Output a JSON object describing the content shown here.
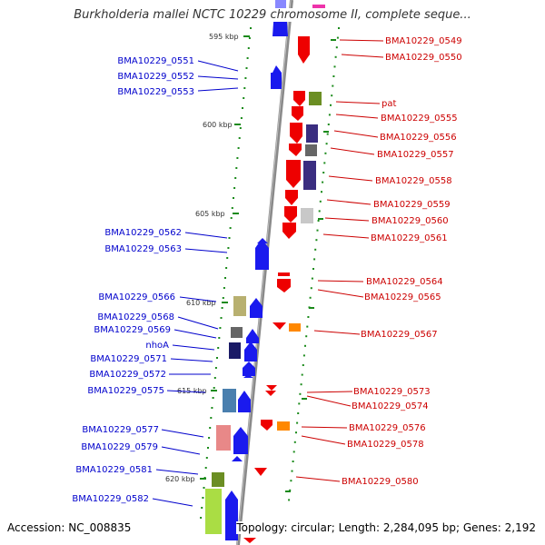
{
  "title": "Burkholderia mallei NCTC 10229 chromosome II, complete seque...",
  "accession": "Accession: NC_008835",
  "topology": "Topology: circular; Length: 2,284,095 bp; Genes: 2,192",
  "ticks": [
    "595 kbp",
    "600 kbp",
    "605 kbp",
    "610 kbp",
    "615 kbp",
    "620 kbp"
  ],
  "colors": {
    "plus_strand": "#0000ee",
    "minus_strand": "#ee0000",
    "ticks": "#1a8a1a",
    "backbone": "#888888"
  },
  "left_labels": [
    "BMA10229_0551",
    "BMA10229_0552",
    "BMA10229_0553",
    "BMA10229_0562",
    "BMA10229_0563",
    "BMA10229_0566",
    "BMA10229_0568",
    "BMA10229_0569",
    "nhoA",
    "BMA10229_0571",
    "BMA10229_0572",
    "BMA10229_0575",
    "BMA10229_0577",
    "BMA10229_0579",
    "BMA10229_0581",
    "BMA10229_0582"
  ],
  "right_labels": [
    "BMA10229_0549",
    "BMA10229_0550",
    "pat",
    "BMA10229_0555",
    "BMA10229_0556",
    "BMA10229_0557",
    "BMA10229_0558",
    "BMA10229_0559",
    "BMA10229_0560",
    "BMA10229_0561",
    "BMA10229_0564",
    "BMA10229_0565",
    "BMA10229_0567",
    "BMA10229_0573",
    "BMA10229_0574",
    "BMA10229_0576",
    "BMA10229_0578",
    "BMA10229_0580"
  ]
}
